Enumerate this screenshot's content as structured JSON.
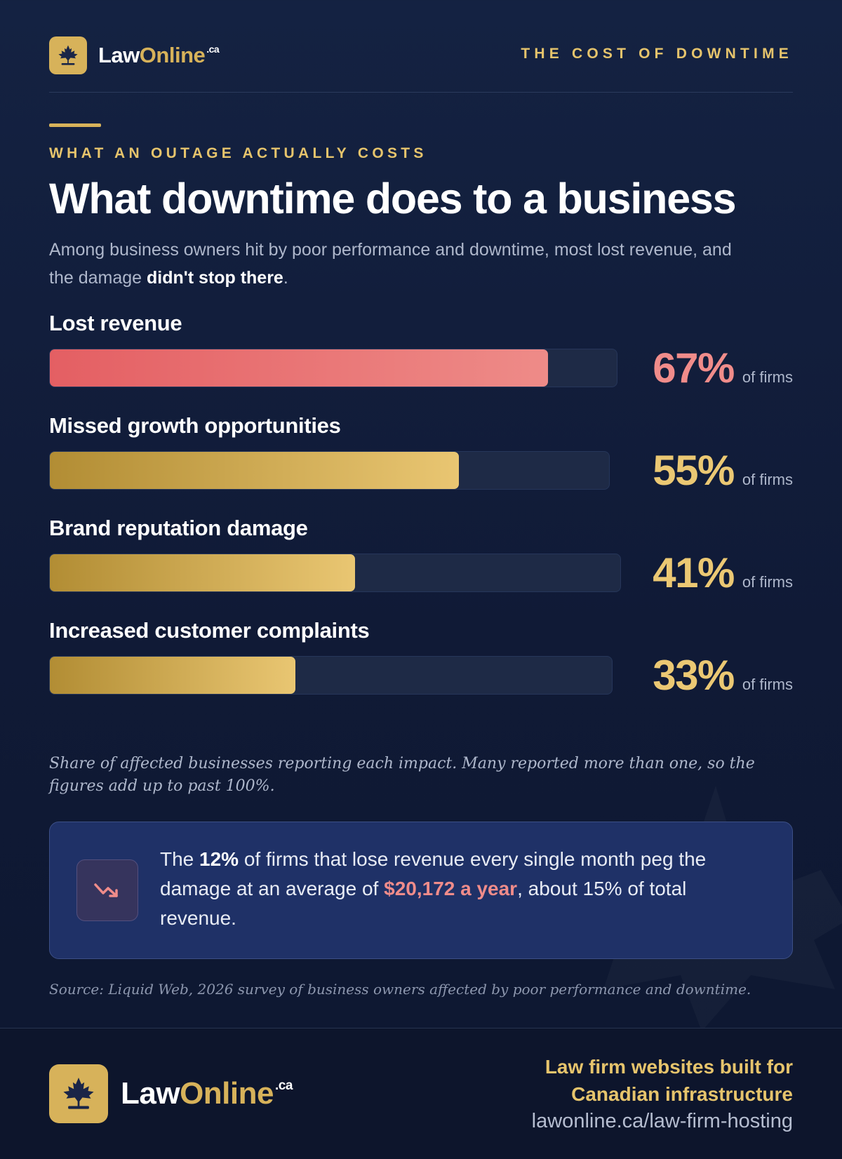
{
  "header": {
    "logo": {
      "law": "Law",
      "online": "Online",
      "tld": ".ca"
    },
    "tag": "THE COST OF DOWNTIME"
  },
  "eyebrow": "WHAT AN OUTAGE ACTUALLY COSTS",
  "title": "What downtime does to a business",
  "subtitle": {
    "text": "Among business owners hit by poor performance and downtime, most lost revenue, and the damage ",
    "emphasis": "didn't stop there",
    "end": "."
  },
  "chart_data": {
    "type": "bar",
    "orientation": "horizontal",
    "categories": [
      "Lost revenue",
      "Missed growth opportunities",
      "Brand reputation damage",
      "Increased customer complaints"
    ],
    "values": [
      67,
      55,
      41,
      33
    ],
    "value_labels": [
      "67%",
      "55%",
      "41%",
      "33%"
    ],
    "unit_label": "of firms",
    "xlim": [
      0,
      100
    ],
    "colors": [
      "#e45f63",
      "#d7b25a",
      "#d7b25a",
      "#d7b25a"
    ]
  },
  "footnote": "Share of affected businesses reporting each impact. Many reported more than one, so the figures add up to past 100%.",
  "callout": {
    "icon": "trend-down-icon",
    "p1": "The ",
    "strong": "12%",
    "p2": " of firms that lose revenue every single month peg the damage at an average of ",
    "highlight": "$20,172 a year",
    "p3": ", about 15% of total revenue."
  },
  "source": "Source: Liquid Web, 2026 survey of business owners affected by poor performance and downtime.",
  "footer": {
    "logo": {
      "law": "Law",
      "online": "Online",
      "tld": ".ca"
    },
    "tagline_line1": "Law firm websites built for",
    "tagline_line2": "Canadian infrastructure",
    "url": "lawonline.ca/law-firm-hosting"
  },
  "colors": {
    "background": "#101a36",
    "gold": "#d7b25a",
    "red": "#f08c8a",
    "callout": "#1f3167"
  }
}
